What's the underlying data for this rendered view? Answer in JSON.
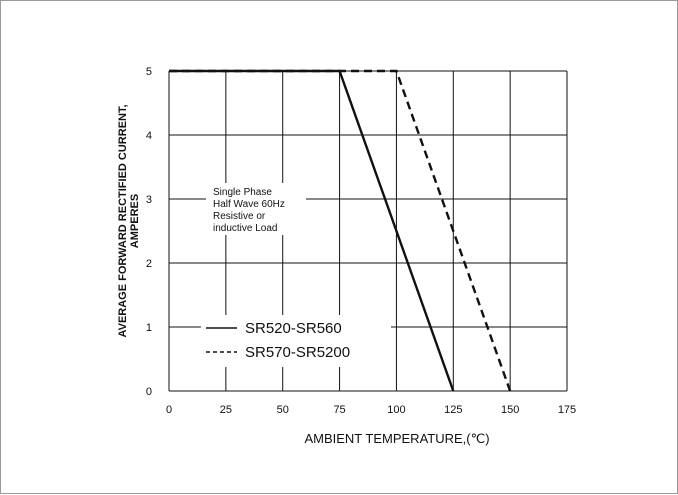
{
  "chart_data": {
    "type": "line",
    "title": "",
    "xlabel": "AMBIENT TEMPERATURE,(℃)",
    "ylabel_lines": [
      "AVERAGE FORWARD RECTIFIED CURRENT,",
      "AMPERES"
    ],
    "xlim": [
      0,
      175
    ],
    "ylim": [
      0,
      5
    ],
    "x_ticks": [
      "0",
      "25",
      "50",
      "75",
      "100",
      "125",
      "150",
      "175"
    ],
    "y_ticks": [
      "0",
      "1",
      "2",
      "3",
      "4",
      "5"
    ],
    "grid": true,
    "note_lines": [
      "Single Phase",
      "Half Wave 60Hz",
      "Resistive or",
      "inductive Load"
    ],
    "series": [
      {
        "name": "SR520-SR560",
        "style": "solid",
        "x": [
          0,
          75,
          125
        ],
        "y": [
          5,
          5,
          0
        ]
      },
      {
        "name": "SR570-SR5200",
        "style": "dashed",
        "x": [
          0,
          100,
          150
        ],
        "y": [
          5,
          5,
          0
        ]
      }
    ]
  }
}
